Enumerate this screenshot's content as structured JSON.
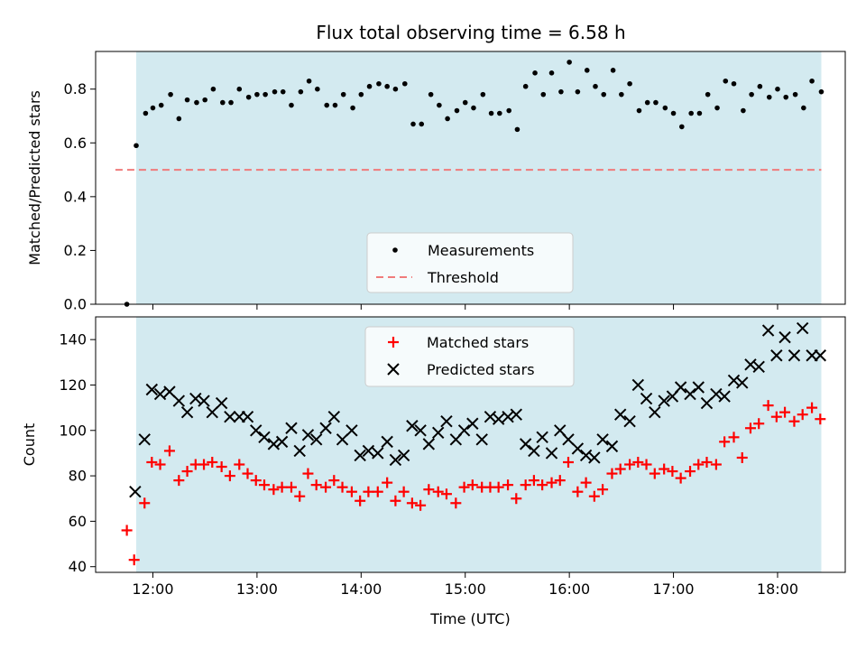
{
  "chart_data": [
    {
      "type": "scatter",
      "title": "Flux total observing time = 6.58 h",
      "ylabel": "Matched/Predicted stars",
      "xlabel": "",
      "x_unit": "hours (UTC)",
      "xlim": [
        11.45,
        18.65
      ],
      "ylim": [
        0.0,
        0.94
      ],
      "yticks": [
        0.0,
        0.2,
        0.4,
        0.6,
        0.8
      ],
      "ytick_labels": [
        "0.0",
        "0.2",
        "0.4",
        "0.6",
        "0.8"
      ],
      "shaded_span": [
        11.84,
        18.42
      ],
      "shaded_color": "#d3eaf0",
      "legend_position": "lower-center",
      "threshold": {
        "name": "Threshold",
        "y": 0.5,
        "x_range": [
          11.64,
          18.42
        ],
        "color": "#f07b7b",
        "style": "dashed"
      },
      "series": [
        {
          "name": "Measurements",
          "marker": "dot",
          "color": "#000000",
          "x": [
            11.75,
            11.84,
            11.93,
            12.0,
            12.08,
            12.17,
            12.25,
            12.33,
            12.42,
            12.5,
            12.58,
            12.67,
            12.75,
            12.83,
            12.92,
            13.0,
            13.08,
            13.17,
            13.25,
            13.33,
            13.42,
            13.5,
            13.58,
            13.67,
            13.75,
            13.83,
            13.92,
            14.0,
            14.08,
            14.17,
            14.25,
            14.33,
            14.42,
            14.5,
            14.58,
            14.67,
            14.75,
            14.83,
            14.92,
            15.0,
            15.08,
            15.17,
            15.25,
            15.33,
            15.42,
            15.5,
            15.58,
            15.67,
            15.75,
            15.83,
            15.92,
            16.0,
            16.08,
            16.17,
            16.25,
            16.33,
            16.42,
            16.5,
            16.58,
            16.67,
            16.75,
            16.83,
            16.92,
            17.0,
            17.08,
            17.17,
            17.25,
            17.33,
            17.42,
            17.5,
            17.58,
            17.67,
            17.75,
            17.83,
            17.92,
            18.0,
            18.08,
            18.17,
            18.25,
            18.33,
            18.42
          ],
          "y": [
            0.0,
            0.59,
            0.71,
            0.73,
            0.74,
            0.78,
            0.69,
            0.76,
            0.75,
            0.76,
            0.8,
            0.75,
            0.75,
            0.8,
            0.77,
            0.78,
            0.78,
            0.79,
            0.79,
            0.74,
            0.79,
            0.83,
            0.8,
            0.74,
            0.74,
            0.78,
            0.73,
            0.78,
            0.81,
            0.82,
            0.81,
            0.8,
            0.82,
            0.67,
            0.67,
            0.78,
            0.74,
            0.69,
            0.72,
            0.75,
            0.73,
            0.78,
            0.71,
            0.71,
            0.72,
            0.65,
            0.81,
            0.86,
            0.78,
            0.86,
            0.79,
            0.9,
            0.79,
            0.87,
            0.81,
            0.78,
            0.87,
            0.78,
            0.82,
            0.72,
            0.75,
            0.75,
            0.73,
            0.71,
            0.66,
            0.71,
            0.71,
            0.78,
            0.73,
            0.83,
            0.82,
            0.72,
            0.78,
            0.81,
            0.77,
            0.8,
            0.77,
            0.78,
            0.73,
            0.83,
            0.79
          ]
        }
      ]
    },
    {
      "type": "scatter",
      "title": "",
      "xlabel": "Time (UTC)",
      "ylabel": "Count",
      "x_unit": "hours (UTC)",
      "xlim": [
        11.45,
        18.65
      ],
      "ylim": [
        37.5,
        150
      ],
      "xticks": [
        12,
        13,
        14,
        15,
        16,
        17,
        18
      ],
      "xtick_labels": [
        "12:00",
        "13:00",
        "14:00",
        "15:00",
        "16:00",
        "17:00",
        "18:00"
      ],
      "yticks": [
        40,
        60,
        80,
        100,
        120,
        140
      ],
      "ytick_labels": [
        "40",
        "60",
        "80",
        "100",
        "120",
        "140"
      ],
      "shaded_span": [
        11.84,
        18.42
      ],
      "shaded_color": "#d3eaf0",
      "legend_position": "upper-center",
      "series": [
        {
          "name": "Matched stars",
          "marker": "plus",
          "color": "#ff0000",
          "x": [
            11.75,
            11.82,
            11.92,
            11.99,
            12.07,
            12.16,
            12.25,
            12.33,
            12.41,
            12.49,
            12.57,
            12.66,
            12.74,
            12.83,
            12.91,
            12.99,
            13.07,
            13.16,
            13.24,
            13.33,
            13.41,
            13.49,
            13.57,
            13.66,
            13.74,
            13.82,
            13.91,
            13.99,
            14.07,
            14.16,
            14.25,
            14.33,
            14.41,
            14.49,
            14.57,
            14.65,
            14.74,
            14.82,
            14.91,
            14.99,
            15.07,
            15.16,
            15.24,
            15.32,
            15.41,
            15.49,
            15.58,
            15.66,
            15.74,
            15.83,
            15.91,
            15.99,
            16.08,
            16.16,
            16.24,
            16.32,
            16.41,
            16.49,
            16.58,
            16.66,
            16.74,
            16.82,
            16.91,
            16.99,
            17.07,
            17.16,
            17.24,
            17.32,
            17.41,
            17.49,
            17.58,
            17.66,
            17.74,
            17.82,
            17.91,
            17.99,
            18.07,
            18.16,
            18.24,
            18.33,
            18.41
          ],
          "y": [
            56,
            43,
            68,
            86,
            85,
            91,
            78,
            82,
            85,
            85,
            86,
            84,
            80,
            85,
            81,
            78,
            76,
            74,
            75,
            75,
            71,
            81,
            76,
            75,
            78,
            75,
            73,
            69,
            73,
            73,
            77,
            69,
            73,
            68,
            67,
            74,
            73,
            72,
            68,
            75,
            76,
            75,
            75,
            75,
            76,
            70,
            76,
            78,
            76,
            77,
            78,
            86,
            73,
            77,
            71,
            74,
            81,
            83,
            85,
            86,
            85,
            81,
            83,
            82,
            79,
            82,
            85,
            86,
            85,
            95,
            97,
            88,
            101,
            103,
            111,
            106,
            108,
            104,
            107,
            110,
            105
          ]
        },
        {
          "name": "Predicted stars",
          "marker": "x",
          "color": "#000000",
          "x": [
            11.83,
            11.92,
            11.99,
            12.07,
            12.16,
            12.25,
            12.33,
            12.41,
            12.49,
            12.57,
            12.66,
            12.74,
            12.83,
            12.91,
            12.99,
            13.07,
            13.16,
            13.24,
            13.33,
            13.41,
            13.49,
            13.57,
            13.66,
            13.74,
            13.82,
            13.91,
            13.99,
            14.07,
            14.16,
            14.25,
            14.33,
            14.41,
            14.49,
            14.57,
            14.65,
            14.74,
            14.82,
            14.91,
            14.99,
            15.07,
            15.16,
            15.24,
            15.32,
            15.41,
            15.49,
            15.58,
            15.66,
            15.74,
            15.83,
            15.91,
            15.99,
            16.08,
            16.16,
            16.24,
            16.32,
            16.41,
            16.49,
            16.58,
            16.66,
            16.74,
            16.82,
            16.91,
            16.99,
            17.07,
            17.16,
            17.24,
            17.32,
            17.41,
            17.49,
            17.58,
            17.66,
            17.74,
            17.82,
            17.91,
            17.99,
            18.07,
            18.16,
            18.24,
            18.33,
            18.41
          ],
          "y": [
            73,
            96,
            118,
            116,
            117,
            113,
            108,
            114,
            113,
            108,
            112,
            106,
            106,
            106,
            100,
            97,
            94,
            95,
            101,
            91,
            98,
            96,
            101,
            106,
            96,
            100,
            89,
            91,
            90,
            95,
            87,
            89,
            102,
            100,
            94,
            99,
            104,
            96,
            100,
            103,
            96,
            106,
            105,
            106,
            107,
            94,
            91,
            97,
            90,
            100,
            96,
            92,
            89,
            88,
            96,
            93,
            107,
            104,
            120,
            114,
            108,
            113,
            115,
            119,
            116,
            119,
            112,
            116,
            115,
            122,
            121,
            129,
            128,
            144,
            133,
            141,
            133,
            145,
            133,
            133
          ]
        }
      ]
    }
  ]
}
